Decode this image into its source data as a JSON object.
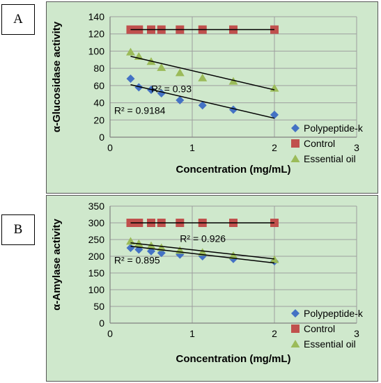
{
  "panels": [
    {
      "label": "A"
    },
    {
      "label": "B"
    }
  ],
  "colors": {
    "background": "#cfe8cc",
    "gridline": "#9e9e9e",
    "polypeptide": "#4472c4",
    "control": "#c0504d",
    "essential_oil": "#9bbb59",
    "trendline": "#000000"
  },
  "chart_data": [
    {
      "type": "scatter",
      "xlabel": "Concentration (mg/mL)",
      "ylabel": "α-Glucosidase activity",
      "xlim": [
        0,
        3
      ],
      "ylim": [
        0,
        140
      ],
      "xticks": [
        0,
        1,
        2,
        3
      ],
      "yticks": [
        0,
        20,
        40,
        60,
        80,
        100,
        120,
        140
      ],
      "grid": true,
      "legend_position": "right",
      "series": [
        {
          "name": "Polypeptide-k",
          "marker": "diamond",
          "x": [
            0.25,
            0.35,
            0.5,
            0.625,
            0.85,
            1.125,
            1.5,
            2.0
          ],
          "y": [
            68,
            58,
            55,
            51,
            43,
            37,
            32,
            26
          ]
        },
        {
          "name": "Control",
          "marker": "square",
          "x": [
            0.25,
            0.35,
            0.5,
            0.625,
            0.85,
            1.125,
            1.5,
            2.0
          ],
          "y": [
            125,
            125,
            125,
            125,
            125,
            125,
            125,
            125
          ]
        },
        {
          "name": "Essential oil",
          "marker": "triangle",
          "x": [
            0.25,
            0.35,
            0.5,
            0.625,
            0.85,
            1.125,
            1.5,
            2.0
          ],
          "y": [
            99,
            94,
            88,
            81,
            75,
            69,
            65,
            57
          ]
        }
      ],
      "trendlines": [
        {
          "series": "Essential oil",
          "from": [
            0.25,
            94
          ],
          "to": [
            2.0,
            55
          ]
        },
        {
          "series": "Polypeptide-k",
          "from": [
            0.25,
            61
          ],
          "to": [
            2.0,
            22
          ]
        },
        {
          "series": "Control",
          "from": [
            0.25,
            125
          ],
          "to": [
            2.0,
            125
          ]
        }
      ],
      "annotations": [
        {
          "text": "R² = 0.93",
          "x": 0.5,
          "y": 52
        },
        {
          "text": "R² = 0.9184",
          "x": 0.05,
          "y": 27
        }
      ]
    },
    {
      "type": "scatter",
      "xlabel": "Concentration (mg/mL)",
      "ylabel": "α-Amylase activity",
      "xlim": [
        0,
        3
      ],
      "ylim": [
        0,
        350
      ],
      "xticks": [
        0,
        1,
        2,
        3
      ],
      "yticks": [
        0,
        50,
        100,
        150,
        200,
        250,
        300,
        350
      ],
      "grid": true,
      "legend_position": "right",
      "series": [
        {
          "name": "Polypeptide-k",
          "marker": "diamond",
          "x": [
            0.25,
            0.35,
            0.5,
            0.625,
            0.85,
            1.125,
            1.5,
            2.0
          ],
          "y": [
            225,
            220,
            215,
            210,
            205,
            200,
            192,
            185
          ]
        },
        {
          "name": "Control",
          "marker": "square",
          "x": [
            0.25,
            0.35,
            0.5,
            0.625,
            0.85,
            1.125,
            1.5,
            2.0
          ],
          "y": [
            300,
            300,
            300,
            300,
            300,
            300,
            300,
            300
          ]
        },
        {
          "name": "Essential oil",
          "marker": "triangle",
          "x": [
            0.25,
            0.35,
            0.5,
            0.625,
            0.85,
            1.125,
            1.5,
            2.0
          ],
          "y": [
            245,
            238,
            232,
            226,
            218,
            212,
            202,
            190
          ]
        }
      ],
      "trendlines": [
        {
          "series": "Essential oil",
          "from": [
            0.25,
            240
          ],
          "to": [
            2.0,
            192
          ]
        },
        {
          "series": "Polypeptide-k",
          "from": [
            0.25,
            230
          ],
          "to": [
            2.0,
            180
          ]
        },
        {
          "series": "Control",
          "from": [
            0.25,
            300
          ],
          "to": [
            2.0,
            300
          ]
        }
      ],
      "annotations": [
        {
          "text": "R² = 0.926",
          "x": 0.85,
          "y": 243
        },
        {
          "text": "R² = 0.895",
          "x": 0.05,
          "y": 178
        }
      ]
    }
  ]
}
